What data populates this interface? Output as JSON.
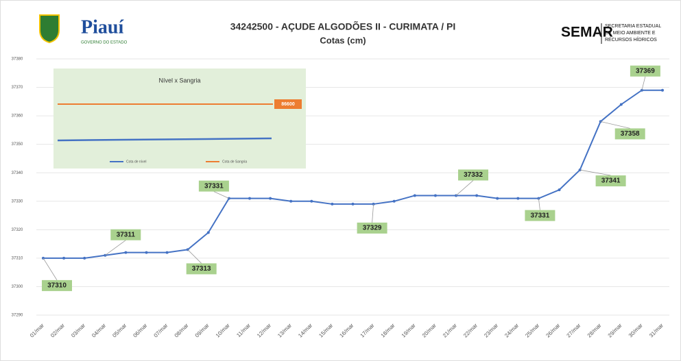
{
  "header": {
    "left_logo": "Piauí",
    "left_logo_sub": "GOVERNO DO ESTADO",
    "right_logo": "SEMAR",
    "right_logo_sub": [
      "SECRETARIA ESTADUAL",
      "DE MEIO AMBIENTE E",
      "RECURSOS HÍDRICOS"
    ]
  },
  "chart_data": {
    "type": "line",
    "title": "34242500 - AÇUDE ALGODÕES II - CURIMATA / PI",
    "subtitle": "Cotas (cm)",
    "categories": [
      "01/mar",
      "02/mar",
      "03/mar",
      "04/mar",
      "05/mar",
      "06/mar",
      "07/mar",
      "08/mar",
      "09/mar",
      "10/mar",
      "11/mar",
      "12/mar",
      "13/mar",
      "14/mar",
      "15/mar",
      "16/mar",
      "17/mar",
      "18/mar",
      "19/mar",
      "20/mar",
      "21/mar",
      "22/mar",
      "23/mar",
      "24/mar",
      "25/mar",
      "26/mar",
      "27/mar",
      "28/mar",
      "29/mar",
      "30/mar",
      "31/mar"
    ],
    "series": [
      {
        "name": "Cota",
        "color": "#4472c4",
        "values": [
          37310,
          37310,
          37310,
          37311,
          37312,
          37312,
          37312,
          37313,
          37319,
          37331,
          37331,
          37331,
          37330,
          37330,
          37329,
          37329,
          37329,
          37330,
          37332,
          37332,
          37332,
          37332,
          37331,
          37331,
          37331,
          37334,
          37341,
          37358,
          37364,
          37369,
          37369
        ],
        "value_labels": [
          "37310",
          null,
          null,
          "37311",
          null,
          null,
          null,
          "37313",
          null,
          "37331",
          null,
          null,
          null,
          null,
          null,
          null,
          "37329",
          null,
          null,
          null,
          "37332",
          null,
          null,
          null,
          "37331",
          null,
          "37341",
          "37358",
          null,
          "37369",
          null
        ]
      }
    ],
    "ylim": [
      37290,
      37380
    ],
    "yticks": [
      37290,
      37300,
      37310,
      37320,
      37330,
      37340,
      37350,
      37360,
      37370,
      37380
    ],
    "inset": {
      "title": "Nível x Sangria",
      "label": "86600",
      "series": [
        {
          "name": "Cota de nível",
          "color": "#4472c4"
        },
        {
          "name": "Cota de Sangria",
          "color": "#ed7d31"
        }
      ]
    }
  }
}
